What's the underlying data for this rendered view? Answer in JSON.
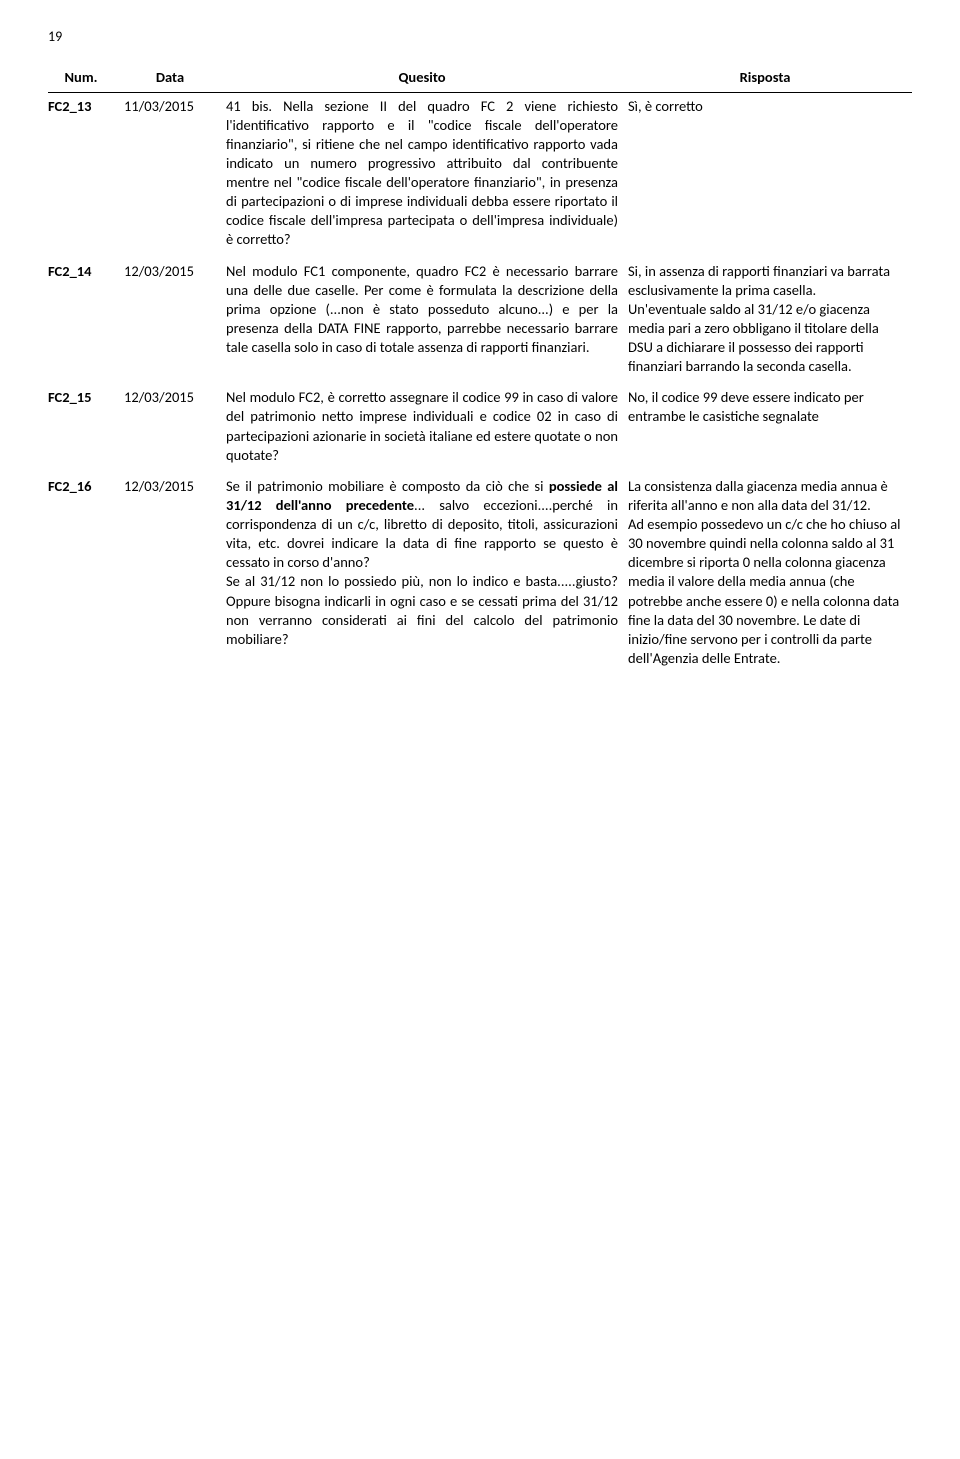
{
  "page_number": "19",
  "headers": {
    "num": "Num.",
    "data": "Data",
    "quesito": "Quesito",
    "risposta": "Risposta"
  },
  "rows": [
    {
      "num": "FC2_13",
      "data": "11/03/2015",
      "q": "41 bis. Nella sezione II del quadro FC 2 viene richiesto l'identificativo rapporto e il \"codice fiscale dell'operatore finanziario\", si ritiene che nel campo identificativo rapporto vada indicato un numero progressivo attribuito dal contribuente mentre nel \"codice fiscale dell'operatore finanziario\", in presenza di partecipazioni o di imprese individuali debba essere riportato il codice fiscale dell'impresa partecipata o dell'impresa individuale) è corretto?",
      "r_html": "Sì, è corretto"
    },
    {
      "num": "FC2_14",
      "data": "12/03/2015",
      "q": "Nel modulo FC1 componente, quadro FC2 è necessario barrare una delle due caselle. Per come è formulata la descrizione della prima opzione (...non è stato posseduto alcuno...) e per la presenza della DATA FINE rapporto, parrebbe necessario barrare tale casella solo in caso di totale assenza di rapporti finanziari.",
      "r_html": "Si, in assenza di rapporti finanziari va barrata esclusivamente la prima casella.<br>Un'eventuale saldo al 31/12 e/o giacenza media pari a zero obbligano il titolare della DSU a dichiarare il possesso dei rapporti finanziari barrando la seconda casella."
    },
    {
      "num": "FC2_15",
      "data": "12/03/2015",
      "q": "Nel modulo FC2, è corretto assegnare il codice 99 in caso di valore del patrimonio netto imprese individuali e codice 02 in caso di partecipazioni azionarie in società italiane ed estere quotate o non quotate?",
      "r_html": "No, il codice 99 deve essere indicato per entrambe le casistiche segnalate"
    },
    {
      "num": "FC2_16",
      "data": "12/03/2015",
      "q_html": "Se il patrimonio mobiliare è composto da ciò che si <span class=\"bold\">possiede al 31/12 dell'anno precedente</span>... salvo eccezioni....perché in corrispondenza di un c/c, libretto di deposito, titoli, assicurazioni vita, etc. dovrei indicare la data di fine rapporto se questo è cessato in corso d'anno?<br>Se al 31/12 non lo possiedo più, non lo indico e basta.....giusto? Oppure bisogna indicarli in ogni caso e se cessati prima del 31/12 non verranno considerati ai fini del calcolo del patrimonio mobiliare?",
      "r_html": "La consistenza dalla giacenza media annua è riferita all'anno e non alla data del 31/12.<br>Ad esempio possedevo un c/c che ho chiuso al 30 novembre quindi nella colonna saldo al 31 dicembre si riporta 0 nella colonna giacenza media il valore della media annua (che potrebbe anche essere 0) e nella colonna data fine la data del 30 novembre.  Le date di inizio/fine servono per i controlli da parte dell'Agenzia delle Entrate."
    }
  ]
}
